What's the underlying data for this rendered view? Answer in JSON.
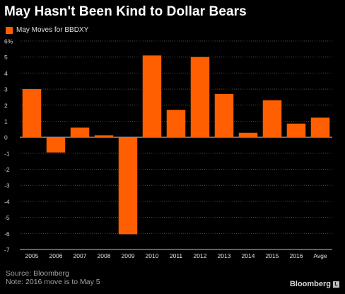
{
  "title": "May Hasn't Been Kind to Dollar Bears",
  "legend_label": "May Moves for BBDXY",
  "colors": {
    "bar": "#FF5F00",
    "background": "#000000",
    "grid": "#4a4a4a",
    "axis": "#bfbfbf"
  },
  "chart_data": {
    "type": "bar",
    "title": "May Hasn't Been Kind to Dollar Bears",
    "xlabel": "",
    "ylabel": "",
    "categories": [
      "2005",
      "2006",
      "2007",
      "2008",
      "2009",
      "2010",
      "2011",
      "2012",
      "2013",
      "2014",
      "2015",
      "2016",
      "Avge"
    ],
    "series": [
      {
        "name": "May Moves for BBDXY",
        "values": [
          3.0,
          -0.95,
          0.6,
          0.12,
          -6.05,
          5.1,
          1.7,
          5.0,
          2.7,
          0.28,
          2.3,
          0.85,
          1.22
        ]
      }
    ],
    "ylim": [
      -7,
      6
    ],
    "yticks": [
      "6%",
      "5",
      "4",
      "3",
      "2",
      "1",
      "0",
      "-1",
      "-2",
      "-3",
      "-4",
      "-5",
      "-6",
      "-7"
    ],
    "grid": "horizontal",
    "legend_position": "top-left"
  },
  "source": "Source: Bloomberg",
  "note": "Note: 2016 move is to May 5",
  "brand": "Bloomberg",
  "brand_mark": "L"
}
